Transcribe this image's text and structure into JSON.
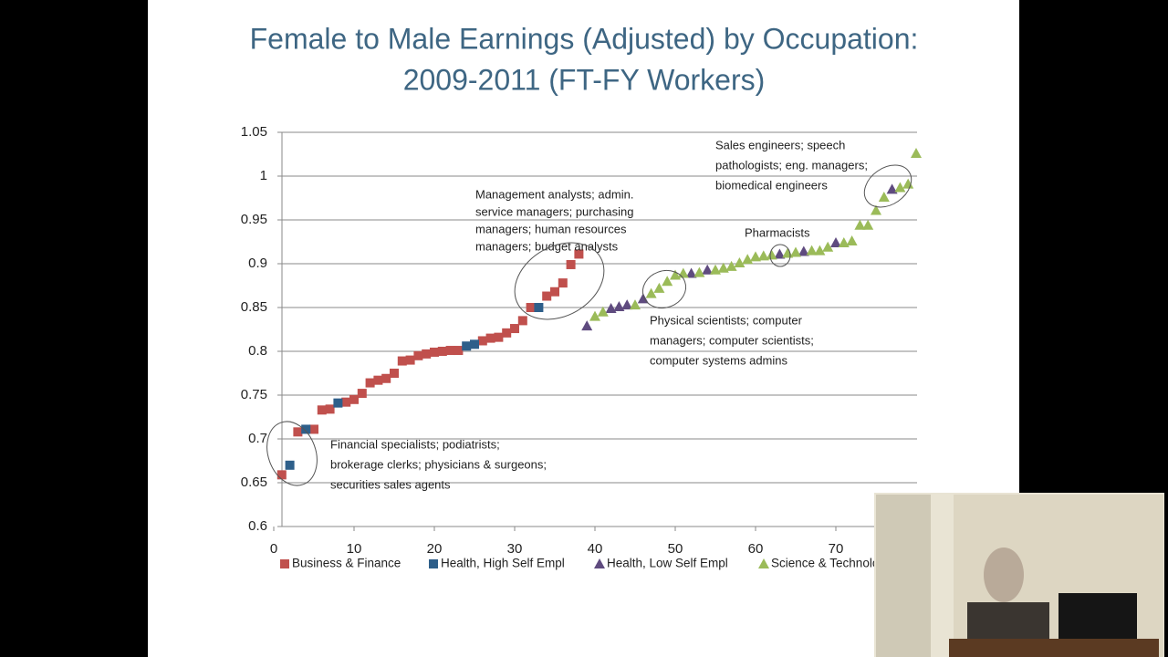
{
  "chart_data": {
    "type": "scatter",
    "title": [
      "Female to Male Earnings (Adjusted) by Occupation:",
      "2009-2011 (FT-FY Workers)"
    ],
    "xlim": [
      0,
      80
    ],
    "xticks": [
      0,
      10,
      20,
      30,
      40,
      50,
      60,
      70
    ],
    "ylim": [
      0.6,
      1.05
    ],
    "yticks": [
      0.6,
      0.65,
      0.7,
      0.75,
      0.8,
      0.85,
      0.9,
      0.95,
      1,
      1.05
    ],
    "grid": true,
    "series": [
      {
        "name": "Business & Finance",
        "color": "#c0504d",
        "marker": "square",
        "x": [
          1,
          3,
          5,
          6,
          7,
          9,
          10,
          11,
          12,
          13,
          14,
          15,
          16,
          17,
          18,
          19,
          20,
          21,
          22,
          23,
          26,
          27,
          28,
          29,
          30,
          31,
          32,
          34,
          35,
          36,
          37,
          38
        ],
        "values": [
          0.659,
          0.708,
          0.711,
          0.733,
          0.734,
          0.742,
          0.745,
          0.752,
          0.764,
          0.767,
          0.769,
          0.775,
          0.789,
          0.79,
          0.795,
          0.797,
          0.799,
          0.8,
          0.801,
          0.801,
          0.812,
          0.815,
          0.816,
          0.821,
          0.826,
          0.835,
          0.85,
          0.863,
          0.868,
          0.878,
          0.899,
          0.911
        ]
      },
      {
        "name": "Health, High Self Empl",
        "color": "#2e5f8a",
        "marker": "square",
        "x": [
          2,
          4,
          8,
          24,
          25,
          33
        ],
        "values": [
          0.67,
          0.711,
          0.741,
          0.806,
          0.808,
          0.85
        ]
      },
      {
        "name": "Health, Low Self Empl",
        "color": "#5f4b7f",
        "marker": "triangle",
        "x": [
          39,
          42,
          43,
          44,
          46,
          52,
          54,
          63,
          66,
          70,
          77
        ],
        "values": [
          0.829,
          0.849,
          0.851,
          0.853,
          0.86,
          0.889,
          0.893,
          0.911,
          0.914,
          0.924,
          0.985
        ]
      },
      {
        "name": "Science & Technology",
        "color": "#9bbb59",
        "marker": "triangle",
        "x": [
          40,
          41,
          45,
          47,
          48,
          49,
          50,
          51,
          53,
          55,
          56,
          57,
          58,
          59,
          60,
          61,
          62,
          64,
          65,
          67,
          68,
          69,
          71,
          72,
          73,
          74,
          75,
          76,
          78,
          79,
          80
        ],
        "values": [
          0.84,
          0.845,
          0.853,
          0.866,
          0.872,
          0.88,
          0.887,
          0.889,
          0.89,
          0.893,
          0.895,
          0.897,
          0.901,
          0.905,
          0.908,
          0.909,
          0.91,
          0.912,
          0.913,
          0.915,
          0.915,
          0.919,
          0.924,
          0.926,
          0.944,
          0.944,
          0.961,
          0.976,
          0.987,
          0.991,
          1.026
        ]
      }
    ],
    "annotations": [
      [
        "Financial specialists; podiatrists;",
        "brokerage clerks; physicians & surgeons;",
        "securities sales agents"
      ],
      [
        "Management analysts; admin.",
        "service managers; purchasing",
        "managers; human resources",
        "managers; budget analysts"
      ],
      [
        "Physical scientists; computer",
        "managers; computer scientists;",
        "computer systems admins"
      ],
      [
        "Pharmacists"
      ],
      [
        "Sales engineers; speech",
        "pathologists; eng. managers;",
        "biomedical engineers"
      ]
    ]
  }
}
